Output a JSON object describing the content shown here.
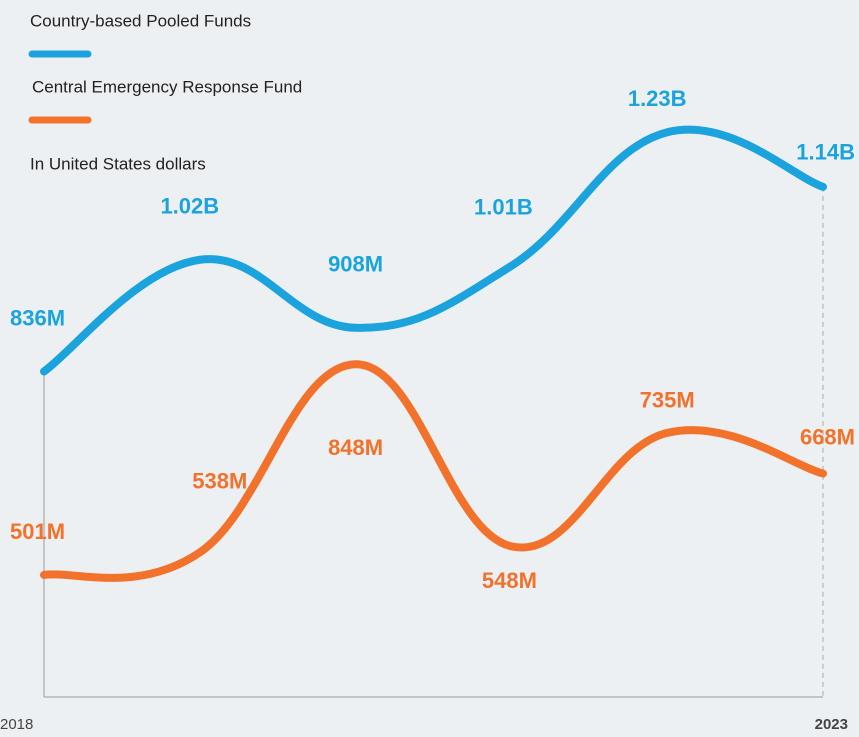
{
  "chart_data": {
    "type": "line",
    "subtitle": "In United States dollars",
    "categories": [
      "2018",
      null,
      null,
      null,
      null,
      "2023"
    ],
    "series": [
      {
        "name": "Country-based Pooled Funds",
        "color": "#1ba3dd",
        "values": [
          836000000,
          1020000000,
          908000000,
          1010000000,
          1230000000,
          1140000000
        ],
        "value_labels": [
          "836M",
          "1.02B",
          "908M",
          "1.01B",
          "1.23B",
          "1.14B"
        ]
      },
      {
        "name": "Central Emergency Response Fund",
        "color": "#f2722b",
        "values": [
          501000000,
          538000000,
          848000000,
          548000000,
          735000000,
          668000000
        ],
        "value_labels": [
          "501M",
          "538M",
          "848M",
          "548M",
          "735M",
          "668M"
        ]
      }
    ],
    "ylim": [
      300000000,
      1400000000
    ]
  }
}
